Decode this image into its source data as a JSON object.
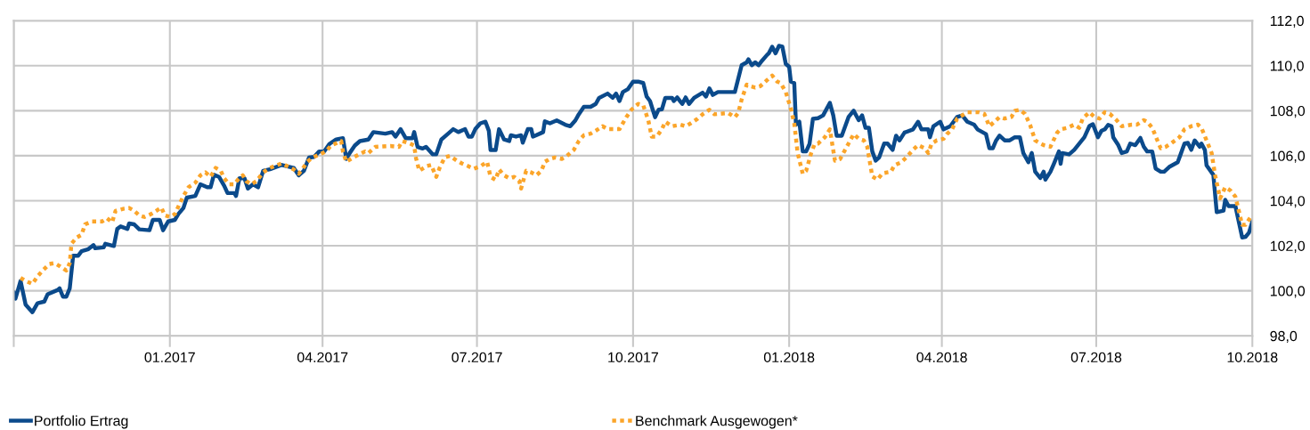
{
  "chart_data": {
    "type": "line",
    "xlim": [
      "2016-10-01",
      "2018-10-01"
    ],
    "xticks": [
      {
        "value": "2016-10-01",
        "label": null
      },
      {
        "value": "2017-01-01",
        "label": "01.2017"
      },
      {
        "value": "2017-04-01",
        "label": "04.2017"
      },
      {
        "value": "2017-07-01",
        "label": "07.2017"
      },
      {
        "value": "2017-10-01",
        "label": "10.2017"
      },
      {
        "value": "2018-01-01",
        "label": "01.2018"
      },
      {
        "value": "2018-04-01",
        "label": "04.2018"
      },
      {
        "value": "2018-07-01",
        "label": "07.2018"
      },
      {
        "value": "2018-10-01",
        "label": "10.2018"
      }
    ],
    "ylim": [
      98,
      112
    ],
    "yticks": [
      {
        "value": 98,
        "label": "98,0"
      },
      {
        "value": 100,
        "label": "100,0"
      },
      {
        "value": 102,
        "label": "102,0"
      },
      {
        "value": 104,
        "label": "104,0"
      },
      {
        "value": 106,
        "label": "106,0"
      },
      {
        "value": 108,
        "label": "108,0"
      },
      {
        "value": 110,
        "label": "110,0"
      },
      {
        "value": 112,
        "label": "112,0"
      }
    ],
    "grid": true,
    "legend": "bottom",
    "series": [
      {
        "name": "Portfolio Ertrag",
        "color": "#0b4a8b",
        "line_style": "solid",
        "x": [
          "2016-10-01",
          "2016-10-02",
          "2016-10-05",
          "2016-10-08",
          "2016-10-12",
          "2016-10-15",
          "2016-10-19",
          "2016-10-21",
          "2016-10-27",
          "2016-10-28",
          "2016-10-30",
          "2016-11-01",
          "2016-11-03",
          "2016-11-05",
          "2016-11-08",
          "2016-11-10",
          "2016-11-14",
          "2016-11-17",
          "2016-11-18",
          "2016-11-23",
          "2016-11-24",
          "2016-11-29",
          "2016-12-01",
          "2016-12-03",
          "2016-12-07",
          "2016-12-08",
          "2016-12-11",
          "2016-12-14",
          "2016-12-20",
          "2016-12-22",
          "2016-12-26",
          "2016-12-28",
          "2016-12-31",
          "2017-01-04",
          "2017-01-06",
          "2017-01-09",
          "2017-01-11",
          "2017-01-16",
          "2017-01-19",
          "2017-01-23",
          "2017-01-25",
          "2017-01-27",
          "2017-01-30",
          "2017-02-02",
          "2017-02-04",
          "2017-02-08",
          "2017-02-09",
          "2017-02-11",
          "2017-02-14",
          "2017-02-16",
          "2017-02-19",
          "2017-02-22",
          "2017-02-25",
          "2017-03-01",
          "2017-03-08",
          "2017-03-15",
          "2017-03-18",
          "2017-03-21",
          "2017-03-24",
          "2017-03-27",
          "2017-03-30",
          "2017-04-02",
          "2017-04-05",
          "2017-04-09",
          "2017-04-13",
          "2017-04-15",
          "2017-04-17",
          "2017-04-20",
          "2017-04-23",
          "2017-04-28",
          "2017-05-01",
          "2017-05-08",
          "2017-05-12",
          "2017-05-14",
          "2017-05-17",
          "2017-05-20",
          "2017-05-24",
          "2017-05-25",
          "2017-05-27",
          "2017-05-30",
          "2017-06-01",
          "2017-06-05",
          "2017-06-07",
          "2017-06-10",
          "2017-06-14",
          "2017-06-17",
          "2017-06-20",
          "2017-06-24",
          "2017-06-26",
          "2017-06-28",
          "2017-06-30",
          "2017-07-03",
          "2017-07-06",
          "2017-07-08",
          "2017-07-09",
          "2017-07-12",
          "2017-07-14",
          "2017-07-17",
          "2017-07-20",
          "2017-07-21",
          "2017-07-24",
          "2017-07-27",
          "2017-07-28",
          "2017-07-31",
          "2017-08-02",
          "2017-08-03",
          "2017-08-07",
          "2017-08-09",
          "2017-08-10",
          "2017-08-13",
          "2017-08-17",
          "2017-08-22",
          "2017-08-25",
          "2017-08-28",
          "2017-08-30",
          "2017-09-02",
          "2017-09-06",
          "2017-09-09",
          "2017-09-11",
          "2017-09-16",
          "2017-09-19",
          "2017-09-21",
          "2017-09-23",
          "2017-09-25",
          "2017-09-28",
          "2017-10-01",
          "2017-10-04",
          "2017-10-07",
          "2017-10-09",
          "2017-10-11",
          "2017-10-14",
          "2017-10-16",
          "2017-10-18",
          "2017-10-20",
          "2017-10-24",
          "2017-10-25",
          "2017-10-27",
          "2017-10-30",
          "2017-11-01",
          "2017-11-03",
          "2017-11-06",
          "2017-11-11",
          "2017-11-13",
          "2017-11-15",
          "2017-11-17",
          "2017-11-20",
          "2017-11-30",
          "2017-12-04",
          "2017-12-07",
          "2017-12-08",
          "2017-12-10",
          "2017-12-12",
          "2017-12-14",
          "2017-12-16",
          "2017-12-19",
          "2017-12-20",
          "2017-12-22",
          "2017-12-24",
          "2017-12-26",
          "2017-12-28",
          "2017-12-30",
          "2018-01-01",
          "2018-01-02",
          "2018-01-04",
          "2018-01-05",
          "2018-01-07",
          "2018-01-09",
          "2018-01-11",
          "2018-01-13",
          "2018-01-15",
          "2018-01-18",
          "2018-01-21",
          "2018-01-25",
          "2018-01-27",
          "2018-01-29",
          "2018-02-01",
          "2018-02-05",
          "2018-02-08",
          "2018-02-11",
          "2018-02-13",
          "2018-02-15",
          "2018-02-17",
          "2018-02-19",
          "2018-02-21",
          "2018-02-23",
          "2018-02-26",
          "2018-02-28",
          "2018-03-03",
          "2018-03-05",
          "2018-03-07",
          "2018-03-10",
          "2018-03-15",
          "2018-03-18",
          "2018-03-20",
          "2018-03-24",
          "2018-03-25",
          "2018-03-27",
          "2018-03-31",
          "2018-04-02",
          "2018-04-06",
          "2018-04-10",
          "2018-04-13",
          "2018-04-16",
          "2018-04-20",
          "2018-04-22",
          "2018-04-27",
          "2018-04-29",
          "2018-05-01",
          "2018-05-03",
          "2018-05-05",
          "2018-05-08",
          "2018-05-11",
          "2018-05-14",
          "2018-05-17",
          "2018-05-19",
          "2018-05-22",
          "2018-05-24",
          "2018-05-26",
          "2018-05-29",
          "2018-05-31",
          "2018-06-01",
          "2018-06-04",
          "2018-06-06",
          "2018-06-09",
          "2018-06-10",
          "2018-06-11",
          "2018-06-15",
          "2018-06-18",
          "2018-06-24",
          "2018-06-27",
          "2018-06-29",
          "2018-07-02",
          "2018-07-04",
          "2018-07-06",
          "2018-07-08",
          "2018-07-10",
          "2018-07-11",
          "2018-07-14",
          "2018-07-16",
          "2018-07-19",
          "2018-07-21",
          "2018-07-24",
          "2018-07-27",
          "2018-07-29",
          "2018-07-31",
          "2018-08-03",
          "2018-08-05",
          "2018-08-08",
          "2018-08-10",
          "2018-08-13",
          "2018-08-18",
          "2018-08-20",
          "2018-08-22",
          "2018-08-24",
          "2018-08-26",
          "2018-08-28",
          "2018-08-31",
          "2018-09-01",
          "2018-09-03",
          "2018-09-04",
          "2018-09-08",
          "2018-09-10",
          "2018-09-14",
          "2018-09-15",
          "2018-09-17",
          "2018-09-21",
          "2018-09-23",
          "2018-09-25",
          "2018-09-27",
          "2018-09-29",
          "2018-10-01"
        ],
        "values": [
          99.91,
          99.65,
          100.44,
          99.38,
          99.05,
          99.45,
          99.52,
          99.85,
          100.04,
          100.11,
          99.74,
          99.74,
          100.11,
          101.56,
          101.56,
          101.76,
          101.85,
          102.03,
          101.89,
          101.93,
          102.09,
          101.99,
          102.75,
          102.86,
          102.75,
          102.99,
          102.95,
          102.73,
          102.69,
          103.15,
          103.15,
          102.69,
          103.08,
          103.15,
          103.41,
          103.68,
          104.14,
          104.21,
          104.73,
          104.6,
          104.6,
          105.16,
          105.06,
          104.67,
          104.34,
          104.34,
          104.21,
          105.0,
          105.0,
          104.54,
          104.73,
          104.6,
          105.33,
          105.4,
          105.59,
          105.46,
          105.13,
          105.33,
          105.92,
          105.95,
          106.19,
          106.19,
          106.52,
          106.72,
          106.78,
          105.86,
          106.12,
          106.45,
          106.65,
          106.72,
          107.05,
          106.98,
          107.05,
          106.85,
          107.18,
          106.78,
          106.78,
          107.05,
          106.39,
          106.32,
          106.39,
          106.06,
          106.06,
          106.72,
          106.98,
          107.18,
          107.05,
          107.18,
          106.85,
          106.85,
          107.18,
          107.44,
          107.51,
          107.11,
          106.25,
          106.25,
          107.18,
          106.72,
          106.65,
          106.91,
          106.85,
          106.91,
          106.58,
          107.18,
          107.18,
          106.85,
          106.98,
          107.05,
          107.53,
          107.44,
          107.57,
          107.38,
          107.31,
          107.57,
          107.84,
          108.17,
          108.17,
          108.3,
          108.57,
          108.76,
          108.57,
          108.76,
          108.43,
          108.83,
          108.96,
          109.29,
          109.29,
          109.23,
          108.63,
          108.43,
          107.71,
          108.04,
          108.06,
          108.57,
          108.57,
          108.43,
          108.59,
          108.3,
          108.59,
          108.3,
          108.57,
          108.8,
          108.63,
          108.99,
          108.7,
          108.83,
          108.83,
          110.02,
          110.15,
          110.28,
          110.02,
          110.15,
          110.02,
          110.22,
          110.48,
          110.55,
          110.84,
          110.55,
          110.88,
          110.84,
          110.08,
          109.95,
          109.29,
          109.23,
          107.38,
          107.51,
          106.19,
          106.19,
          106.52,
          107.64,
          107.67,
          107.79,
          108.35,
          107.79,
          106.89,
          106.89,
          107.72,
          108.0,
          107.58,
          107.79,
          107.24,
          107.24,
          106.19,
          105.78,
          105.92,
          106.54,
          106.54,
          106.26,
          106.89,
          106.68,
          107.03,
          107.17,
          107.51,
          107.17,
          107.17,
          106.82,
          107.31,
          107.51,
          107.17,
          107.31,
          107.72,
          107.79,
          107.51,
          107.38,
          107.17,
          106.96,
          106.33,
          106.33,
          106.68,
          106.89,
          106.68,
          106.68,
          106.82,
          106.82,
          106.12,
          105.71,
          106.12,
          105.29,
          105.01,
          105.29,
          104.94,
          105.29,
          105.64,
          106.19,
          105.64,
          106.12,
          106.06,
          106.26,
          106.82,
          107.32,
          107.4,
          106.82,
          107.1,
          107.17,
          107.37,
          107.31,
          106.82,
          106.47,
          106.12,
          106.19,
          106.54,
          106.47,
          106.79,
          106.4,
          106.19,
          106.19,
          105.43,
          105.29,
          105.29,
          105.5,
          105.71,
          106.12,
          106.54,
          106.57,
          106.26,
          106.68,
          106.4,
          106.54,
          106.26,
          105.57,
          105.15,
          103.49,
          103.56,
          104.04,
          103.76,
          103.76,
          103.07,
          102.37,
          102.4,
          102.58,
          103.07
        ]
      },
      {
        "name": "Benchmark Ausgewogen*",
        "color": "#fba52a",
        "line_style": "dotted",
        "x": [
          "2016-10-05",
          "2016-10-08",
          "2016-10-12",
          "2016-10-15",
          "2016-10-18",
          "2016-10-22",
          "2016-10-25",
          "2016-10-28",
          "2016-11-01",
          "2016-11-03",
          "2016-11-04",
          "2016-11-07",
          "2016-11-10",
          "2016-11-12",
          "2016-11-16",
          "2016-11-22",
          "2016-11-25",
          "2016-11-28",
          "2016-11-30",
          "2016-12-05",
          "2016-12-08",
          "2016-12-11",
          "2016-12-14",
          "2016-12-17",
          "2016-12-21",
          "2016-12-27",
          "2016-12-29",
          "2017-01-01",
          "2017-01-04",
          "2017-01-06",
          "2017-01-09",
          "2017-01-12",
          "2017-01-16",
          "2017-01-19",
          "2017-01-22",
          "2017-01-25",
          "2017-01-28",
          "2017-01-31",
          "2017-02-02",
          "2017-02-05",
          "2017-02-08",
          "2017-02-10",
          "2017-02-13",
          "2017-02-15",
          "2017-02-18",
          "2017-02-21",
          "2017-02-25",
          "2017-03-01",
          "2017-03-08",
          "2017-03-15",
          "2017-03-18",
          "2017-03-20",
          "2017-03-23",
          "2017-03-26",
          "2017-03-31",
          "2017-04-03",
          "2017-04-06",
          "2017-04-12",
          "2017-04-13",
          "2017-04-15",
          "2017-04-19",
          "2017-04-26",
          "2017-04-28",
          "2017-05-02",
          "2017-05-11",
          "2017-05-16",
          "2017-05-18",
          "2017-05-22",
          "2017-05-25",
          "2017-05-26",
          "2017-05-28",
          "2017-06-01",
          "2017-06-04",
          "2017-06-07",
          "2017-06-09",
          "2017-06-12",
          "2017-06-15",
          "2017-06-19",
          "2017-06-22",
          "2017-06-26",
          "2017-06-29",
          "2017-07-03",
          "2017-07-07",
          "2017-07-09",
          "2017-07-12",
          "2017-07-14",
          "2017-07-17",
          "2017-07-20",
          "2017-07-23",
          "2017-07-26",
          "2017-07-27",
          "2017-07-30",
          "2017-08-02",
          "2017-08-05",
          "2017-08-08",
          "2017-08-10",
          "2017-08-13",
          "2017-08-16",
          "2017-08-20",
          "2017-08-23",
          "2017-08-27",
          "2017-08-30",
          "2017-09-02",
          "2017-09-06",
          "2017-09-09",
          "2017-09-13",
          "2017-09-16",
          "2017-09-23",
          "2017-09-27",
          "2017-09-30",
          "2017-10-04",
          "2017-10-07",
          "2017-10-10",
          "2017-10-12",
          "2017-10-15",
          "2017-10-18",
          "2017-10-20",
          "2017-10-24",
          "2017-10-29",
          "2017-11-01",
          "2017-11-04",
          "2017-11-08",
          "2017-11-11",
          "2017-11-15",
          "2017-11-18",
          "2017-11-26",
          "2017-11-30",
          "2017-12-02",
          "2017-12-04",
          "2017-12-07",
          "2017-12-09",
          "2017-12-12",
          "2017-12-15",
          "2017-12-19",
          "2017-12-22",
          "2017-12-25",
          "2017-12-27",
          "2017-12-30",
          "2018-01-02",
          "2018-01-04",
          "2018-01-06",
          "2018-01-09",
          "2018-01-11",
          "2018-01-14",
          "2018-01-16",
          "2018-01-18",
          "2018-01-22",
          "2018-01-25",
          "2018-01-28",
          "2018-01-31",
          "2018-02-05",
          "2018-02-08",
          "2018-02-11",
          "2018-02-14",
          "2018-02-16",
          "2018-02-19",
          "2018-02-22",
          "2018-02-25",
          "2018-03-02",
          "2018-03-04",
          "2018-03-08",
          "2018-03-11",
          "2018-03-15",
          "2018-03-18",
          "2018-03-22",
          "2018-03-24",
          "2018-03-26",
          "2018-03-29",
          "2018-04-02",
          "2018-04-04",
          "2018-04-07",
          "2018-04-10",
          "2018-04-13",
          "2018-04-16",
          "2018-04-23",
          "2018-04-26",
          "2018-04-29",
          "2018-05-03",
          "2018-05-05",
          "2018-05-08",
          "2018-05-12",
          "2018-05-14",
          "2018-05-17",
          "2018-05-20",
          "2018-05-23",
          "2018-05-26",
          "2018-05-29",
          "2018-05-31",
          "2018-06-04",
          "2018-06-08",
          "2018-06-10",
          "2018-06-14",
          "2018-06-18",
          "2018-06-21",
          "2018-06-23",
          "2018-06-27",
          "2018-06-30",
          "2018-07-03",
          "2018-07-06",
          "2018-07-09",
          "2018-07-13",
          "2018-07-16",
          "2018-07-22",
          "2018-07-25",
          "2018-07-29",
          "2018-07-31",
          "2018-08-03",
          "2018-08-06",
          "2018-08-08",
          "2018-08-11",
          "2018-08-14",
          "2018-08-19",
          "2018-08-22",
          "2018-08-26",
          "2018-08-30",
          "2018-09-01",
          "2018-09-04",
          "2018-09-07",
          "2018-09-09",
          "2018-09-12",
          "2018-09-15",
          "2018-09-18",
          "2018-09-21",
          "2018-09-23",
          "2018-09-25",
          "2018-09-27",
          "2018-09-30"
        ],
        "values": [
          100.57,
          100.44,
          100.31,
          100.64,
          100.9,
          101.19,
          101.23,
          101.1,
          100.9,
          101.23,
          102.09,
          102.36,
          102.49,
          102.95,
          103.08,
          103.08,
          103.22,
          103.04,
          103.55,
          103.65,
          103.68,
          103.55,
          103.35,
          103.28,
          103.41,
          103.7,
          103.35,
          103.28,
          103.41,
          103.74,
          104.21,
          104.6,
          104.8,
          105.13,
          105.26,
          105.06,
          105.46,
          105.33,
          105.0,
          104.73,
          104.73,
          104.93,
          105.13,
          104.87,
          104.73,
          104.87,
          105.26,
          105.46,
          105.66,
          105.39,
          105.2,
          105.39,
          105.73,
          105.92,
          106.08,
          106.19,
          106.45,
          106.65,
          106.19,
          105.73,
          105.92,
          106.19,
          106.12,
          106.39,
          106.43,
          106.39,
          106.65,
          106.56,
          106.45,
          105.92,
          105.33,
          105.53,
          105.59,
          105.06,
          105.46,
          105.92,
          105.99,
          105.79,
          105.66,
          105.53,
          105.42,
          105.53,
          105.73,
          105.06,
          104.93,
          105.39,
          105.13,
          105.0,
          105.06,
          104.87,
          104.54,
          105.33,
          105.26,
          105.13,
          105.33,
          105.73,
          105.86,
          105.92,
          105.86,
          105.99,
          106.25,
          106.65,
          106.91,
          106.98,
          107.11,
          107.31,
          107.18,
          107.18,
          107.71,
          108.04,
          108.3,
          108.24,
          107.57,
          106.85,
          106.85,
          107.18,
          107.51,
          107.31,
          107.38,
          107.31,
          107.44,
          107.64,
          107.84,
          108.04,
          107.84,
          107.9,
          107.71,
          107.9,
          108.5,
          109.16,
          109.09,
          109.03,
          109.09,
          109.36,
          109.56,
          109.29,
          109.23,
          108.83,
          108.1,
          107.44,
          106.12,
          105.2,
          105.33,
          106.12,
          106.52,
          106.54,
          106.82,
          107.17,
          105.78,
          105.85,
          106.54,
          106.96,
          106.75,
          106.68,
          106.4,
          105.08,
          104.94,
          105.22,
          105.29,
          105.57,
          105.71,
          105.92,
          106.26,
          106.47,
          106.33,
          106.12,
          106.54,
          106.68,
          106.75,
          106.96,
          107.17,
          107.65,
          107.79,
          107.93,
          107.93,
          107.86,
          107.31,
          107.58,
          107.72,
          107.65,
          107.72,
          108.0,
          108.04,
          107.86,
          107.37,
          106.68,
          106.54,
          106.47,
          106.4,
          107.03,
          107.17,
          107.24,
          107.38,
          107.24,
          107.65,
          107.93,
          107.72,
          107.65,
          107.93,
          107.86,
          107.58,
          107.31,
          107.38,
          107.38,
          107.58,
          107.51,
          107.24,
          106.68,
          106.33,
          106.4,
          106.54,
          106.82,
          107.17,
          107.31,
          107.38,
          107.24,
          106.68,
          106.12,
          105.15,
          104.11,
          104.6,
          104.46,
          104.18,
          103.56,
          102.93,
          102.93,
          103.28
        ]
      }
    ]
  }
}
